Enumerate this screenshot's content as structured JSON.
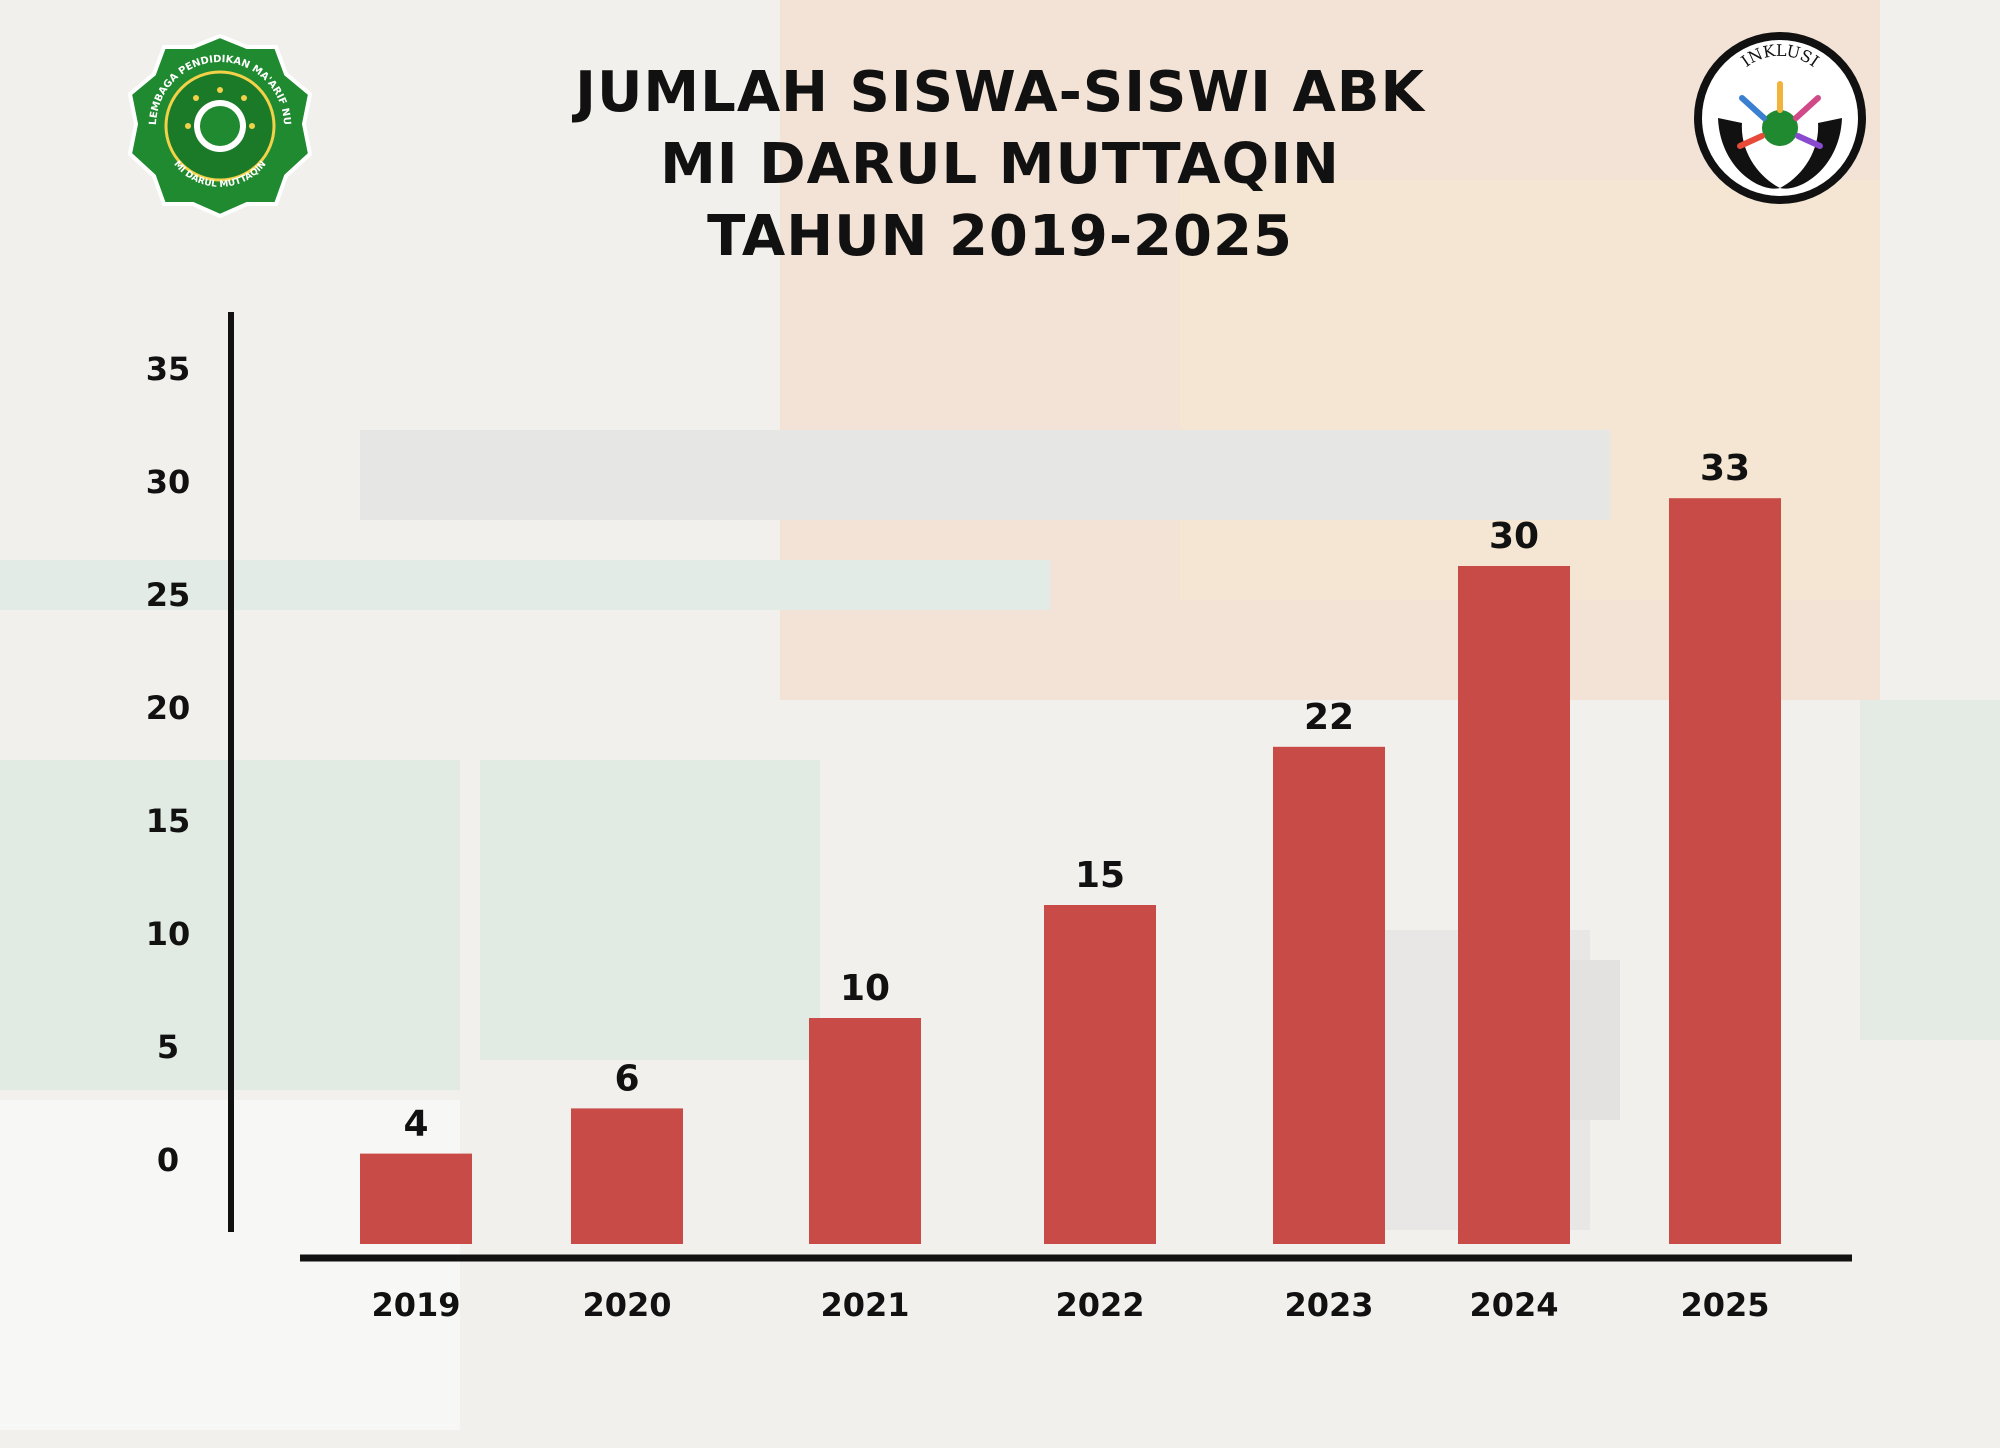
{
  "title_lines": [
    "JUMLAH SISWA-SISWI ABK",
    "MI DARUL MUTTAQIN",
    "TAHUN 2019-2025"
  ],
  "logos": {
    "left": {
      "icon": "maarif-nu-emblem-icon",
      "ring_text": "LEMBAGA PENDIDIKAN MA'ARIF NU",
      "bottom_text": "MI DARUL MUTTAQIN",
      "color": "#1f8a2f"
    },
    "right": {
      "icon": "inklusi-hands-icon",
      "text": "INKLUSI"
    }
  },
  "colors": {
    "bar": "#c84b47",
    "axis": "#111111",
    "text": "#111111"
  },
  "chart_data": {
    "type": "bar",
    "title": "JUMLAH SISWA-SISWI ABK MI DARUL MUTTAQIN TAHUN 2019-2025",
    "categories": [
      "2019",
      "2020",
      "2021",
      "2022",
      "2023",
      "2024",
      "2025"
    ],
    "values": [
      4,
      6,
      10,
      15,
      22,
      30,
      33
    ],
    "data_labels": [
      "4",
      "6",
      "10",
      "15",
      "22",
      "30",
      "33"
    ],
    "xlabel": "",
    "ylabel": "",
    "ylim": [
      0,
      35
    ],
    "yticks": [
      0,
      5,
      10,
      15,
      20,
      25,
      30,
      35
    ],
    "grid": false,
    "legend": "none"
  }
}
